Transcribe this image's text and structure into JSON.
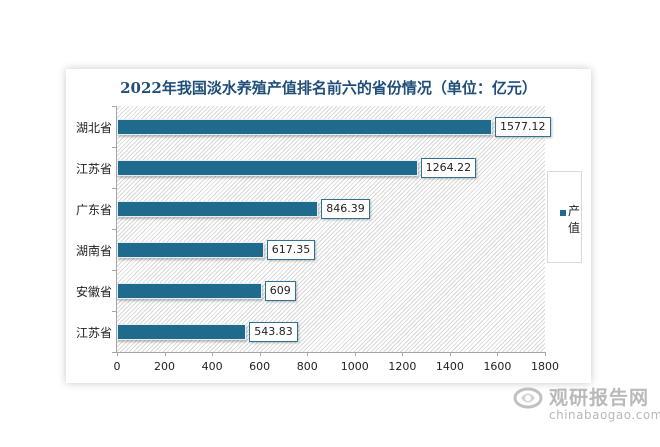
{
  "chart_data": {
    "type": "bar",
    "orientation": "horizontal",
    "title": "2022年我国淡水养殖产值排名前六的省份情况（单位：亿元）",
    "categories": [
      "湖北省",
      "江苏省",
      "广东省",
      "湖南省",
      "安徽省",
      "江苏省"
    ],
    "series": [
      {
        "name": "产值",
        "values": [
          1577.12,
          1264.22,
          846.39,
          617.35,
          609,
          543.83
        ],
        "color": "#1f6b8e"
      }
    ],
    "data_labels": [
      "1577.12",
      "1264.22",
      "846.39",
      "617.35",
      "609",
      "543.83"
    ],
    "xlabel": "",
    "ylabel": "",
    "xlim": [
      0,
      1800
    ],
    "x_ticks": [
      "0",
      "200",
      "400",
      "600",
      "800",
      "1000",
      "1200",
      "1400",
      "1600",
      "1800"
    ],
    "grid": false,
    "legend_position": "right",
    "legend": [
      "产值"
    ]
  },
  "legend": {
    "label": "产值"
  },
  "watermark": {
    "cn": "观研报告网",
    "en": "chinabaogao.com"
  }
}
